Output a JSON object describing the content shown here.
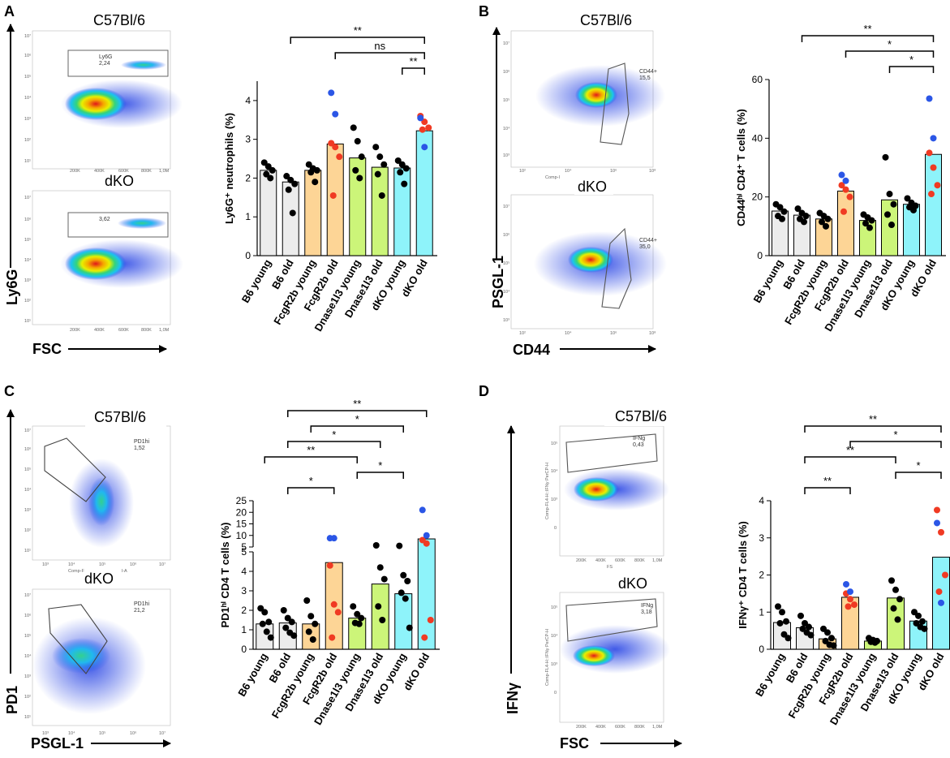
{
  "figure": {
    "colors": {
      "B6 young": "#ececec",
      "B6 old": "#ececec",
      "FcgR2b young": "#fdd596",
      "FcgR2b old": "#fdd596",
      "Dnase1l3 young": "#ccf579",
      "Dnase1l3 old": "#ccf579",
      "dKO young": "#8ef3fa",
      "dKO old": "#8ef3fa",
      "dot_black": "#000000",
      "dot_red": "#f03a23",
      "dot_blue": "#2b56e6"
    }
  },
  "panels": [
    {
      "id": "A",
      "label": "A",
      "facs": {
        "top_strain": "C57Bl/6",
        "bottom_strain": "dKO",
        "y_axis_label": "Ly6G",
        "x_axis_label": "FSC",
        "top_gate_name": "Ly6G",
        "top_gate_value": "2,24",
        "bottom_gate_value": "3,62",
        "x_ticks": [
          "200K",
          "400K",
          "600K",
          "800K",
          "1,0M"
        ],
        "y_ticks": [
          "10⁷",
          "10⁶",
          "10⁵",
          "10⁴",
          "10³",
          "10²",
          "10¹"
        ]
      },
      "chart_data": {
        "type": "bar",
        "ylabel": "Ly6G⁺ neutrophils (%)",
        "ylim": [
          0,
          4.5
        ],
        "yticks": [
          "0",
          "1",
          "2",
          "3",
          "4"
        ],
        "categories": [
          "B6 young",
          "B6 old",
          "FcgR2b young",
          "FcgR2b old",
          "Dnase1l3 young",
          "Dnase1l3 old",
          "dKO young",
          "dKO old"
        ],
        "values": [
          2.2,
          1.9,
          2.2,
          2.88,
          2.52,
          2.28,
          2.26,
          3.22
        ],
        "points": [
          {
            "black": [
              2.4,
              2.3,
              2.2,
              2.1,
              2.0
            ],
            "red": [],
            "blue": []
          },
          {
            "black": [
              2.05,
              1.95,
              1.85,
              1.7,
              1.1
            ],
            "red": [],
            "blue": []
          },
          {
            "black": [
              2.35,
              2.25,
              2.2,
              2.15,
              1.9
            ],
            "red": [],
            "blue": []
          },
          {
            "black": [],
            "red": [
              2.9,
              2.8,
              2.55,
              1.55
            ],
            "blue": [
              4.2,
              3.65
            ]
          },
          {
            "black": [
              3.3,
              2.95,
              2.55,
              2.2,
              2.0
            ],
            "red": [],
            "blue": []
          },
          {
            "black": [
              2.8,
              2.55,
              2.35,
              2.1,
              1.55
            ],
            "red": [],
            "blue": []
          },
          {
            "black": [
              2.45,
              2.35,
              2.25,
              2.15,
              1.85
            ],
            "red": [],
            "blue": []
          },
          {
            "black": [],
            "red": [
              3.6,
              3.45,
              3.3,
              3.25
            ],
            "blue": [
              3.55,
              2.8
            ]
          }
        ],
        "significance": [
          {
            "from": "B6 old",
            "to": "dKO old",
            "label": "**"
          },
          {
            "from": "FcgR2b old",
            "to": "dKO old",
            "label": "ns"
          },
          {
            "from": "dKO young",
            "to": "dKO old",
            "label": "**"
          }
        ]
      }
    },
    {
      "id": "B",
      "label": "B",
      "facs": {
        "top_strain": "C57Bl/6",
        "bottom_strain": "dKO",
        "y_axis_label": "PSGL-1",
        "x_axis_label": "CD44",
        "top_gate_name": "CD44+",
        "top_gate_value": "15,5",
        "bottom_gate_name": "CD44+",
        "bottom_gate_value": "35,0",
        "x_ticks": [
          "10²",
          "10⁴",
          "10⁶",
          "10⁸"
        ],
        "y_ticks": [
          "10⁷",
          "10⁶",
          "10⁵",
          "10⁴",
          "10³"
        ],
        "x_title_fragment": "Comp-I"
      },
      "chart_data": {
        "type": "bar",
        "ylabel": "CD44ʰⁱ CD4⁺ T cells (%)",
        "ylim": [
          0,
          60
        ],
        "yticks": [
          "0",
          "20",
          "40",
          "60"
        ],
        "categories": [
          "B6 young",
          "B6 old",
          "FcgR2b young",
          "FcgR2b old",
          "Dnase1l3 young",
          "Dnase1l3 old",
          "dKO young",
          "dKO old"
        ],
        "values": [
          15.2,
          13.8,
          12.5,
          22.0,
          12.0,
          19.0,
          17.5,
          34.5
        ],
        "points": [
          {
            "black": [
              17.5,
              16.5,
              15.0,
              13.5,
              12.5
            ],
            "red": [],
            "blue": []
          },
          {
            "black": [
              16.0,
              14.5,
              13.5,
              12.5,
              11.5
            ],
            "red": [],
            "blue": []
          },
          {
            "black": [
              14.5,
              13.5,
              12.5,
              11.5,
              10.0
            ],
            "red": [],
            "blue": []
          },
          {
            "black": [],
            "red": [
              24.0,
              22.5,
              20.0,
              15.0
            ],
            "blue": [
              27.5,
              25.5
            ]
          },
          {
            "black": [
              14.0,
              13.0,
              12.0,
              11.0,
              9.5
            ],
            "red": [],
            "blue": []
          },
          {
            "black": [
              33.5,
              21.0,
              17.5,
              14.0,
              10.5
            ],
            "red": [],
            "blue": []
          },
          {
            "black": [
              19.5,
              18.0,
              17.0,
              16.5,
              15.5
            ],
            "red": [],
            "blue": []
          },
          {
            "black": [],
            "red": [
              35.0,
              30.0,
              24.0,
              21.0
            ],
            "blue": [
              53.5,
              40.0
            ]
          }
        ],
        "significance": [
          {
            "from": "B6 old",
            "to": "dKO old",
            "label": "**"
          },
          {
            "from": "FcgR2b old",
            "to": "dKO old",
            "label": "*"
          },
          {
            "from": "Dnase1l3 old",
            "to": "dKO old",
            "label": "*"
          }
        ]
      }
    },
    {
      "id": "C",
      "label": "C",
      "facs": {
        "top_strain": "C57Bl/6",
        "bottom_strain": "dKO",
        "y_axis_label": "PD1",
        "x_axis_label": "PSGL-1",
        "top_gate_name": "PD1hi",
        "top_gate_value": "1,52",
        "bottom_gate_name": "PD1hi",
        "bottom_gate_value": "21,2",
        "x_ticks": [
          "10³",
          "10⁴",
          "10⁵",
          "10⁶",
          "10⁷"
        ],
        "y_ticks": [
          "10⁷",
          "10⁶",
          "10⁵",
          "10⁴",
          "10³",
          "10²",
          "10¹"
        ],
        "x_title_fragment": "Comp-F",
        "x_title_fragment_right": "l-A"
      },
      "chart_data": {
        "type": "bar",
        "ylabel": "PD1ʰⁱ CD4 T cells (%)",
        "axis_break": "broken y-axis at 5; lower segment 0-5, upper segment 5-25",
        "ylim_lower": [
          0,
          5
        ],
        "ylim_upper": [
          5,
          25
        ],
        "yticks_lower": [
          "0",
          "1",
          "2",
          "3",
          "4",
          "5"
        ],
        "yticks_upper": [
          "5",
          "10",
          "15",
          "20",
          "25"
        ],
        "categories": [
          "B6 young",
          "B6 old",
          "FcgR2b young",
          "FcgR2b old",
          "Dnase1l3 young",
          "Dnase1l3 old",
          "dKO young",
          "dKO old"
        ],
        "values": [
          1.3,
          1.35,
          1.3,
          4.45,
          1.6,
          3.35,
          2.85,
          8.5
        ],
        "points": [
          {
            "black": [
              2.1,
              1.9,
              1.4,
              1.3,
              0.9,
              0.6
            ],
            "red": [],
            "blue": []
          },
          {
            "black": [
              2.0,
              1.6,
              1.4,
              1.1,
              0.85,
              0.7
            ],
            "red": [],
            "blue": []
          },
          {
            "black": [
              2.5,
              1.7,
              1.3,
              0.9,
              0.5
            ],
            "red": [],
            "blue": []
          },
          {
            "black": [],
            "red": [
              4.3,
              2.3,
              1.9,
              0.6
            ],
            "blue": [
              8.8,
              8.8
            ]
          },
          {
            "black": [
              2.2,
              1.8,
              1.6,
              1.35,
              1.3
            ],
            "red": [],
            "blue": []
          },
          {
            "black": [
              5.7,
              4.2,
              3.6,
              2.2,
              1.5
            ],
            "red": [],
            "blue": []
          },
          {
            "black": [
              5.5,
              3.8,
              3.5,
              2.9,
              2.6,
              1.1
            ],
            "red": [],
            "blue": []
          },
          {
            "black": [],
            "red": [
              8.0,
              6.5,
              1.5,
              0.6
            ],
            "blue": [
              21.0,
              10.0
            ]
          }
        ],
        "significance": [
          {
            "from": "B6 young",
            "to": "Dnase1l3 young",
            "label": "**"
          },
          {
            "from": "B6 old",
            "to": "FcgR2b old",
            "label": "*"
          },
          {
            "from": "B6 old",
            "to": "Dnase1l3 old",
            "label": "*"
          },
          {
            "from": "B6 old",
            "to": "dKO old",
            "label": "**"
          },
          {
            "from": "FcgR2b young",
            "to": "dKO young",
            "label": "*"
          },
          {
            "from": "Dnase1l3 young",
            "to": "dKO young",
            "label": "*"
          }
        ]
      }
    },
    {
      "id": "D",
      "label": "D",
      "facs": {
        "top_strain": "C57Bl/6",
        "bottom_strain": "dKO",
        "y_axis_label": "IFNγ",
        "x_axis_label": "FSC",
        "top_gate_name": "IFNg",
        "top_gate_value": "0,43",
        "bottom_gate_name": "IFNg",
        "bottom_gate_value": "3,18",
        "x_ticks": [
          "200K",
          "400K",
          "600K",
          "800K",
          "1,0M"
        ],
        "y_ticks": [
          "10⁵",
          "10⁴",
          "10³",
          "0"
        ],
        "y_title_fragment": "Comp-FL4-H::IFNy PerCP-H",
        "x_title_fragment": "FS"
      },
      "chart_data": {
        "type": "bar",
        "ylabel": "IFNγ⁺ CD4 T cells (%)",
        "ylim": [
          0,
          4
        ],
        "yticks": [
          "0",
          "1",
          "2",
          "3",
          "4"
        ],
        "categories": [
          "B6 young",
          "B6 old",
          "FcgR2b young",
          "FcgR2b old",
          "Dnase1l3 young",
          "Dnase1l3 old",
          "dKO young",
          "dKO old"
        ],
        "values": [
          0.72,
          0.58,
          0.28,
          1.4,
          0.22,
          1.38,
          0.76,
          2.48
        ],
        "points": [
          {
            "black": [
              1.15,
              1.0,
              0.75,
              0.7,
              0.4,
              0.3
            ],
            "red": [],
            "blue": []
          },
          {
            "black": [
              0.9,
              0.7,
              0.6,
              0.55,
              0.45,
              0.38
            ],
            "red": [],
            "blue": []
          },
          {
            "black": [
              0.55,
              0.45,
              0.3,
              0.22,
              0.12,
              0.1
            ],
            "red": [],
            "blue": []
          },
          {
            "black": [],
            "red": [
              1.5,
              1.35,
              1.2,
              1.15
            ],
            "blue": [
              1.75,
              1.55
            ]
          },
          {
            "black": [
              0.3,
              0.25,
              0.22,
              0.2,
              0.18
            ],
            "red": [],
            "blue": []
          },
          {
            "black": [
              1.85,
              1.6,
              1.35,
              1.1,
              0.8
            ],
            "red": [],
            "blue": []
          },
          {
            "black": [
              1.0,
              0.9,
              0.75,
              0.7,
              0.6,
              0.55
            ],
            "red": [],
            "blue": []
          },
          {
            "black": [],
            "red": [
              3.75,
              3.15,
              2.0,
              1.55
            ],
            "blue": [
              3.4,
              1.25
            ]
          }
        ],
        "significance": [
          {
            "from": "B6 old",
            "to": "FcgR2b old",
            "label": "**"
          },
          {
            "from": "B6 old",
            "to": "Dnase1l3 old",
            "label": "**"
          },
          {
            "from": "B6 old",
            "to": "dKO old",
            "label": "**"
          },
          {
            "from": "FcgR2b old",
            "to": "dKO old",
            "label": "*"
          },
          {
            "from": "Dnase1l3 old",
            "to": "dKO old",
            "label": "*"
          }
        ]
      }
    }
  ]
}
